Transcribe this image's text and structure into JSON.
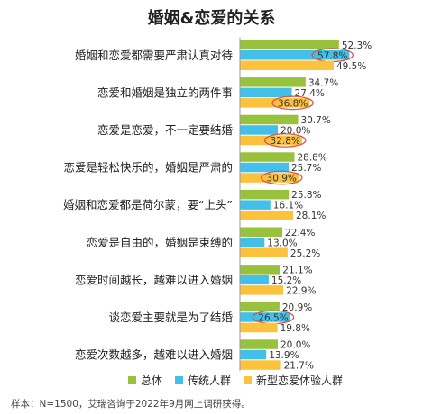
{
  "chart_data": {
    "type": "bar",
    "orientation": "horizontal",
    "title": "婚姻&恋爱的关系",
    "categories": [
      "婚姻和恋爱都需要严肃认真对待",
      "恋爱和婚姻是独立的两件事",
      "恋爱是恋爱，不一定要结婚",
      "恋爱是轻松快乐的，婚姻是严肃的",
      "婚姻和恋爱都是荷尔蒙，要“上头”",
      "恋爱是自由的，婚姻是束缚的",
      "恋爱时间越长，越难以进入婚姻",
      "谈恋爱主要就是为了结婚",
      "恋爱次数越多，越难以进入婚姻"
    ],
    "series": [
      {
        "name": "总体",
        "color": "#99c23c",
        "values": [
          52.3,
          34.7,
          30.7,
          28.8,
          25.8,
          22.4,
          21.1,
          20.9,
          20.0
        ],
        "labels": [
          "52.3%",
          "34.7%",
          "30.7%",
          "28.8%",
          "25.8%",
          "22.4%",
          "21.1%",
          "20.9%",
          "20.0%"
        ]
      },
      {
        "name": "传统人群",
        "color": "#42c0ea",
        "values": [
          57.8,
          27.4,
          20.0,
          25.7,
          16.1,
          13.0,
          15.2,
          26.5,
          13.9
        ],
        "labels": [
          "57.8%",
          "27.4%",
          "20.0%",
          "25.7%",
          "16.1%",
          "13.0%",
          "15.2%",
          "26.5%",
          "13.9%"
        ]
      },
      {
        "name": "新型恋爱体验人群",
        "color": "#fcc23c",
        "values": [
          49.5,
          36.8,
          32.8,
          30.9,
          28.1,
          25.2,
          22.9,
          19.8,
          21.7
        ],
        "labels": [
          "49.5%",
          "36.8%",
          "32.8%",
          "30.9%",
          "28.1%",
          "25.2%",
          "22.9%",
          "19.8%",
          "21.7%"
        ]
      }
    ],
    "highlighted": [
      {
        "series": 1,
        "index": 0
      },
      {
        "series": 2,
        "index": 1
      },
      {
        "series": 2,
        "index": 2
      },
      {
        "series": 2,
        "index": 3
      },
      {
        "series": 1,
        "index": 7
      }
    ],
    "highlight_color": "#d9534f",
    "legend_position": "bottom",
    "grid": false
  },
  "footnote": "样本：N=1500，艾瑞咨询于2022年9月网上调研获得。"
}
